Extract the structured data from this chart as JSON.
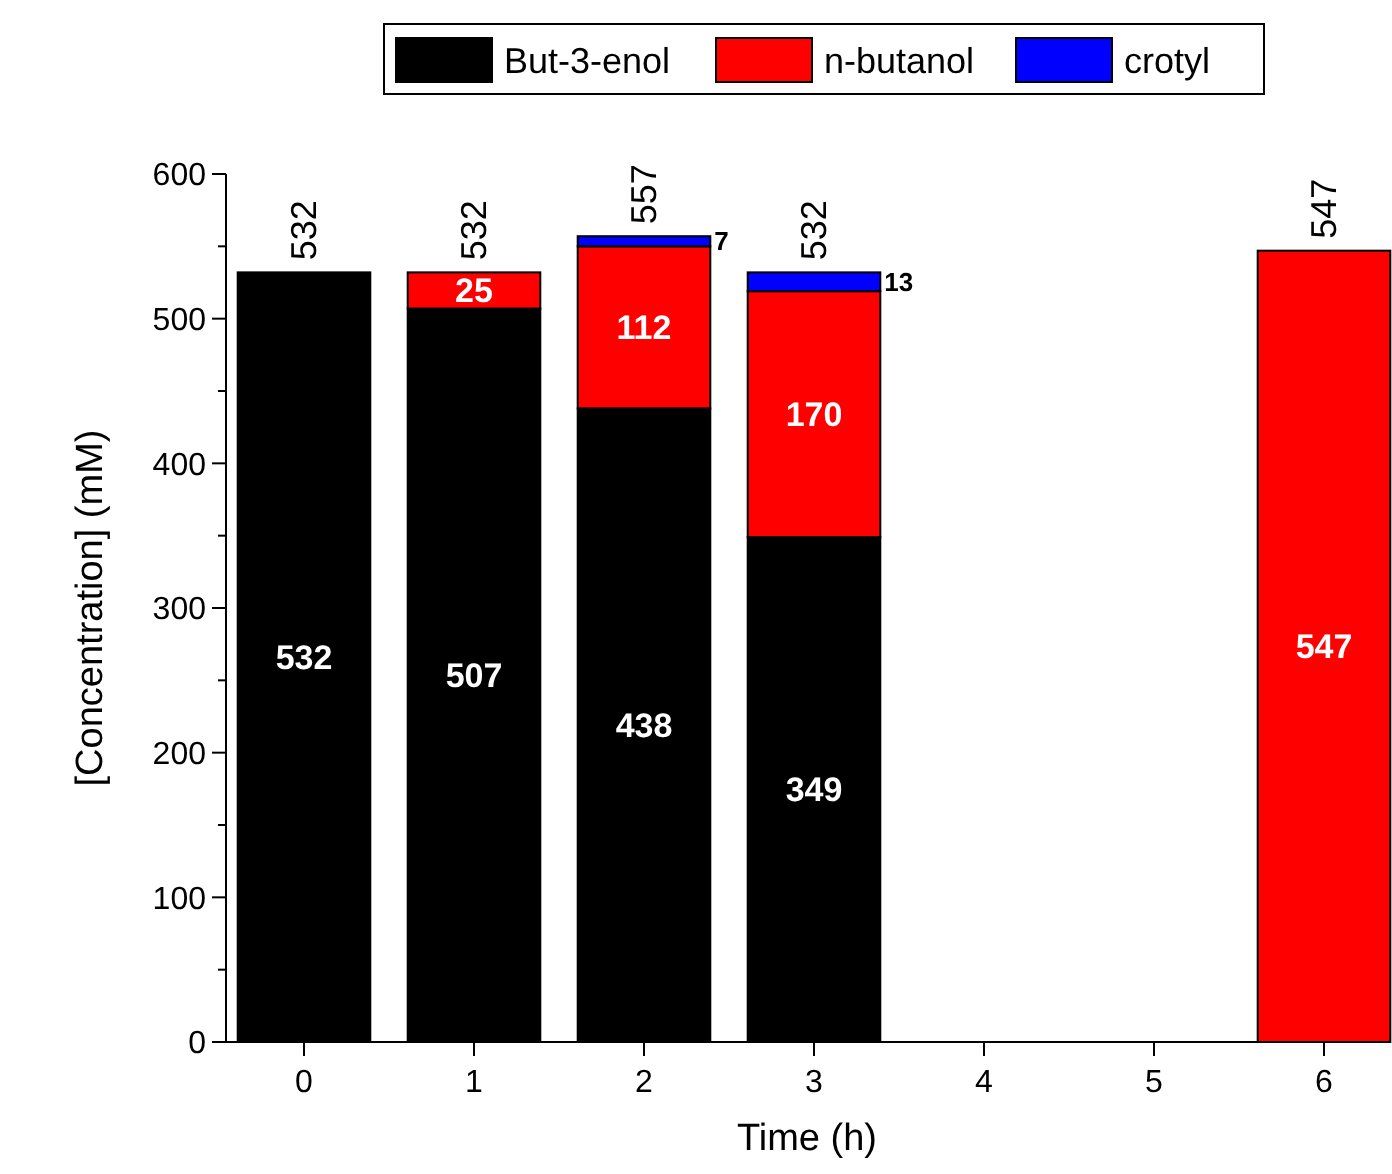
{
  "chart_data": {
    "type": "bar",
    "stacked": true,
    "xlabel": "Time (h)",
    "ylabel": "[Concentration] (mM)",
    "categories": [
      "0",
      "1",
      "2",
      "3",
      "4",
      "5",
      "6"
    ],
    "series": [
      {
        "name": "But-3-enol",
        "color": "#000000",
        "values": [
          532,
          507,
          438,
          349,
          null,
          null,
          null
        ]
      },
      {
        "name": "n-butanol",
        "color": "#ff0000",
        "values": [
          null,
          25,
          112,
          170,
          null,
          null,
          547
        ]
      },
      {
        "name": "crotyl",
        "color": "#0000ff",
        "values": [
          null,
          null,
          7,
          13,
          null,
          null,
          null
        ]
      }
    ],
    "data_labels": true,
    "totals": [
      "532",
      "532",
      "557",
      "532",
      null,
      null,
      "547"
    ],
    "ylim": [
      0,
      600
    ],
    "yticks": [
      0,
      {
        "value": 50,
        "label": null
      },
      100,
      {
        "value": 150,
        "label": null
      },
      200,
      {
        "value": 250,
        "label": null
      },
      300,
      {
        "value": 350,
        "label": null
      },
      400,
      {
        "value": 450,
        "label": null
      },
      500,
      {
        "value": 550,
        "label": null
      },
      600
    ],
    "legend": "top",
    "grid": false
  }
}
